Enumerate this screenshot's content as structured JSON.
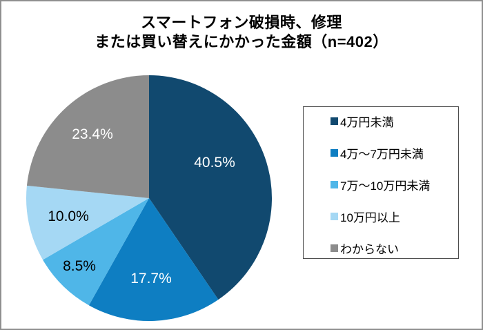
{
  "chart_data": {
    "type": "pie",
    "title_line1": "スマートフォン破損時、修理",
    "title_line2": "または買い替えにかかった金額（n=402）",
    "sample_size_note": "n=402",
    "direction": "clockwise",
    "start_angle_deg": 0,
    "legend_position": "right",
    "unit": "%",
    "slices": [
      {
        "label": "4万円未満",
        "value": 40.5,
        "display": "40.5%",
        "color": "#11496F",
        "label_color": "#FFFFFF"
      },
      {
        "label": "4万～7万円未満",
        "value": 17.7,
        "display": "17.7%",
        "color": "#0E7EC2",
        "label_color": "#FFFFFF"
      },
      {
        "label": "7万～10万円未満",
        "value": 8.5,
        "display": "8.5%",
        "color": "#4FB6E8",
        "label_color": "#000000"
      },
      {
        "label": "10万円以上",
        "value": 10.0,
        "display": "10.0%",
        "color": "#A5D8F4",
        "label_color": "#000000"
      },
      {
        "label": "わからない",
        "value": 23.4,
        "display": "23.4%",
        "color": "#8C8C8C",
        "label_color": "#FFFFFF"
      }
    ]
  }
}
